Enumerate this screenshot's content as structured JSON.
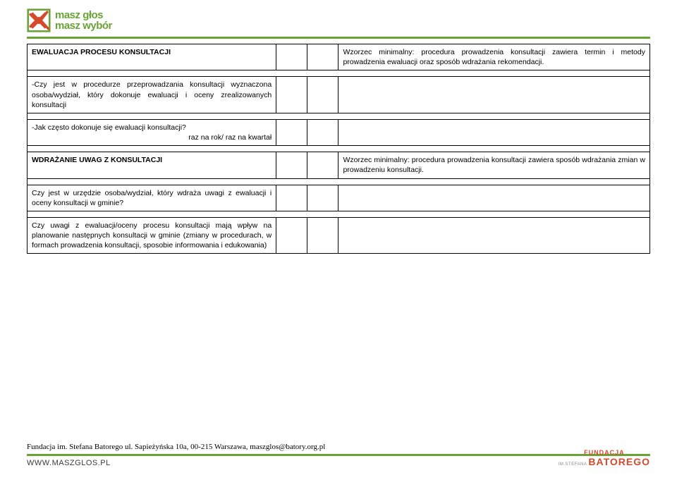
{
  "logo": {
    "line1": "masz głos",
    "line2": "masz wybór",
    "x_stroke_color": "#d54a2a",
    "box_color": "#6aa335"
  },
  "table": {
    "rows": [
      {
        "type": "section",
        "desc": "EWALUACJA PROCESU KONSULTACJI",
        "right": "Wzorzec minimalny: procedura prowadzenia konsultacji zawiera termin i metody prowadzenia ewaluacji oraz sposób wdrażania rekomendacji."
      },
      {
        "type": "body",
        "desc": "-Czy jest w procedurze przeprowadzania konsultacji wyznaczona osoba/wydział, który dokonuje ewaluacji i oceny zrealizowanych konsultacji",
        "right": ""
      },
      {
        "type": "body",
        "desc": "-Jak często dokonuje się ewaluacji konsultacji?\n                                raz na rok/ raz na kwartał",
        "right": ""
      },
      {
        "type": "section",
        "desc": "WDRAŻANIE UWAG Z KONSULTACJI",
        "right": "Wzorzec minimalny: procedura prowadzenia konsultacji zawiera sposób wdrażania zmian w prowadzeniu konsultacji."
      },
      {
        "type": "body",
        "desc": "Czy jest w urzędzie osoba/wydział, który wdraża uwagi z ewaluacji i oceny konsultacji w gminie?",
        "right": ""
      },
      {
        "type": "body",
        "desc": "Czy uwagi z ewaluacji/oceny procesu konsultacji mają wpływ na planowanie następnych konsultacji w gminie (zmiany w procedurach, w formach prowadzenia konsultacji, sposobie informowania i edukowania)",
        "right": ""
      }
    ]
  },
  "footer": {
    "line": "Fundacja im. Stefana Batorego ul. Sapieżyńska 10a, 00-215 Warszawa, maszglos@batory.org.pl",
    "url": "WWW.MASZGLOS.PL",
    "fundacja": "FUNDACJA",
    "stefana": "IM.STEFANA",
    "batorego": "BATOREGO"
  },
  "colors": {
    "green": "#6aa335",
    "red": "#d54a2a",
    "black": "#000000",
    "white": "#ffffff"
  }
}
